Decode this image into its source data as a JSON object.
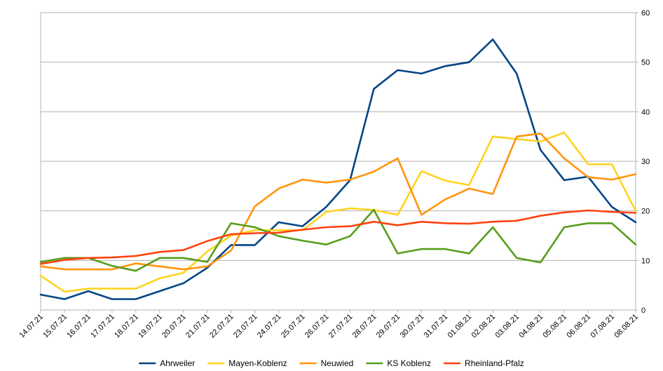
{
  "chart_data": {
    "type": "line",
    "title": "",
    "xlabel": "",
    "ylabel": "",
    "ylim": [
      0,
      60
    ],
    "yticks": [
      0,
      10,
      20,
      30,
      40,
      50,
      60
    ],
    "y_axis_side": "right",
    "grid": "horizontal",
    "legend_position": "bottom",
    "categories": [
      "14.07.21",
      "15.07.21",
      "16.07.21",
      "17.07.21",
      "18.07.21",
      "19.07.21",
      "20.07.21",
      "21.07.21",
      "22.07.21",
      "23.07.21",
      "24.07.21",
      "25.07.21",
      "26.07.21",
      "27.07.21",
      "28.07.21",
      "29.07.21",
      "30.07.21",
      "31.07.21",
      "01.08.21",
      "02.08.21",
      "03.08.21",
      "04.08.21",
      "05.08.21",
      "06.08.21",
      "07.08.21",
      "08.08.21"
    ],
    "series": [
      {
        "name": "Ahrweiler",
        "color": "#004586",
        "values": [
          3.1,
          2.2,
          3.8,
          2.2,
          2.2,
          3.8,
          5.4,
          8.5,
          13.1,
          13.1,
          17.7,
          16.9,
          20.8,
          26.2,
          44.6,
          48.4,
          47.7,
          49.2,
          50.0,
          54.6,
          47.7,
          32.3,
          26.2,
          26.9,
          20.8,
          17.7
        ]
      },
      {
        "name": "Mayen-Koblenz",
        "color": "#ffd320",
        "values": [
          6.9,
          3.7,
          4.3,
          4.3,
          4.3,
          6.4,
          7.5,
          11.8,
          15.0,
          16.1,
          16.1,
          16.1,
          19.8,
          20.5,
          20.2,
          19.2,
          28.0,
          26.1,
          25.2,
          35.0,
          34.5,
          34.0,
          35.8,
          29.4,
          29.4,
          20.0
        ]
      },
      {
        "name": "Neuwied",
        "color": "#ff950e",
        "values": [
          8.8,
          8.2,
          8.2,
          8.2,
          9.4,
          8.8,
          8.2,
          8.8,
          12.0,
          20.9,
          24.5,
          26.3,
          25.7,
          26.3,
          27.9,
          30.6,
          19.2,
          22.3,
          24.5,
          23.4,
          35.0,
          35.6,
          30.6,
          26.8,
          26.3,
          27.4
        ]
      },
      {
        "name": "KS Koblenz",
        "color": "#579d1c",
        "values": [
          9.7,
          10.5,
          10.5,
          8.9,
          7.9,
          10.5,
          10.5,
          9.7,
          17.5,
          16.7,
          14.9,
          14.0,
          13.2,
          14.9,
          20.2,
          11.4,
          12.3,
          12.3,
          11.4,
          16.7,
          10.5,
          9.6,
          16.7,
          17.5,
          17.5,
          13.2
        ]
      },
      {
        "name": "Rheinland-Pfalz",
        "color": "#ff420e",
        "values": [
          9.3,
          10.1,
          10.5,
          10.6,
          10.9,
          11.7,
          12.1,
          13.9,
          15.3,
          15.5,
          15.6,
          16.2,
          16.7,
          16.9,
          17.8,
          17.1,
          17.8,
          17.5,
          17.4,
          17.8,
          18.0,
          19.0,
          19.7,
          20.1,
          19.8,
          19.6
        ]
      }
    ]
  }
}
